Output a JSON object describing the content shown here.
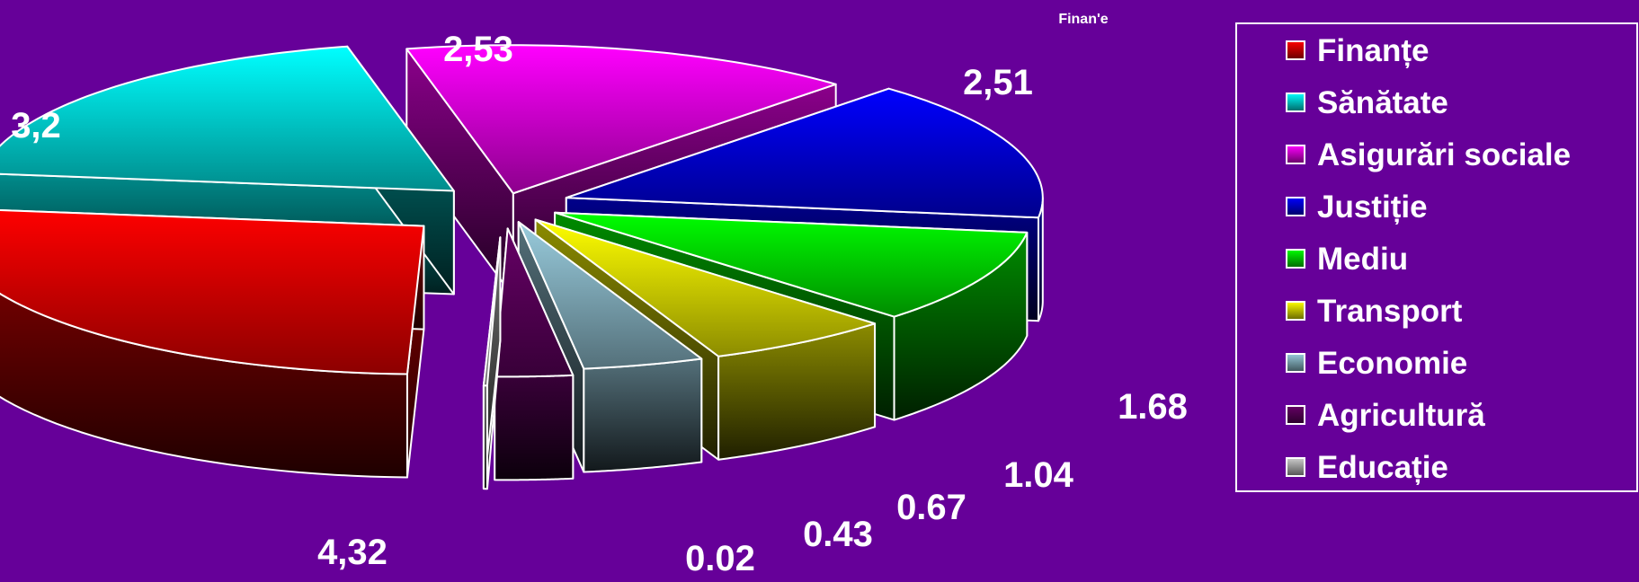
{
  "chart_data": {
    "type": "pie",
    "title": "Finan'e",
    "slices": [
      {
        "label": "Finanțe",
        "value": 4.32,
        "value_text": "4,32",
        "color": "#ff0000"
      },
      {
        "label": "Sănătate",
        "value": 3.2,
        "value_text": "3,2",
        "color": "#00ffff"
      },
      {
        "label": "Asigurări sociale",
        "value": 2.53,
        "value_text": "2,53",
        "color": "#ff00ff"
      },
      {
        "label": "Justiție",
        "value": 2.51,
        "value_text": "2,51",
        "color": "#0000ff"
      },
      {
        "label": "Mediu",
        "value": 1.68,
        "value_text": "1.68",
        "color": "#00ff00"
      },
      {
        "label": "Transport",
        "value": 1.04,
        "value_text": "1.04",
        "color": "#ffff00"
      },
      {
        "label": "Economie",
        "value": 0.67,
        "value_text": "0.67",
        "color": "#99ccdd"
      },
      {
        "label": "Agricultură",
        "value": 0.43,
        "value_text": "0.43",
        "color": "#660066"
      },
      {
        "label": "Educație",
        "value": 0.02,
        "value_text": "0.02",
        "color": "#cccccc"
      }
    ],
    "legend_position": "right",
    "exploded": true,
    "style": "3d"
  }
}
